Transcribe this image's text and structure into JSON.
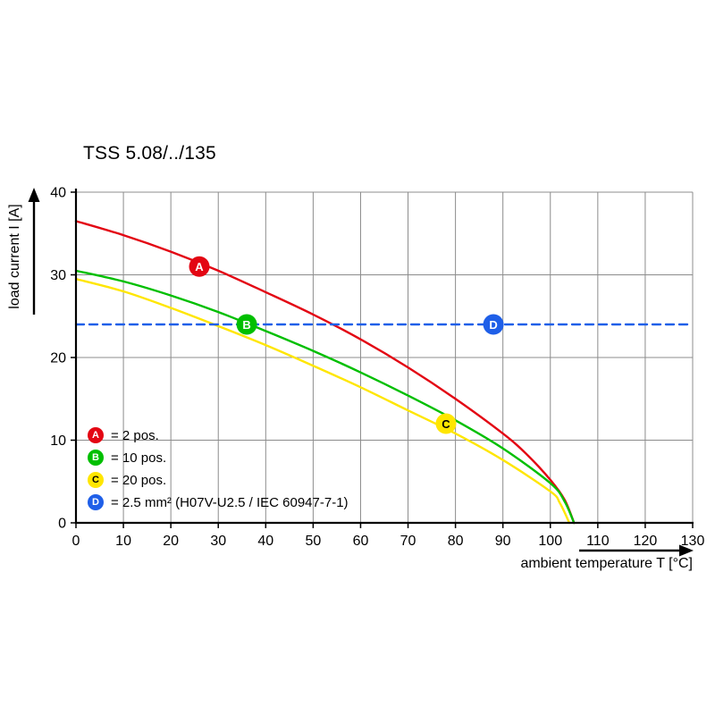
{
  "title": "TSS 5.08/../135",
  "axes": {
    "xlabel": "ambient temperature T [°C]",
    "ylabel": "load current I [A]"
  },
  "legend": {
    "items": [
      {
        "badge": "A",
        "text": "= 2 pos.",
        "color": "#e30613",
        "text_color": "#ffffff"
      },
      {
        "badge": "B",
        "text": "= 10 pos.",
        "color": "#00bf00",
        "text_color": "#ffffff"
      },
      {
        "badge": "C",
        "text": "= 20 pos.",
        "color": "#ffe600",
        "text_color": "#000000"
      },
      {
        "badge": "D",
        "text": "= 2.5 mm² (H07V-U2.5 / IEC 60947-7-1)",
        "color": "#1f5fe8",
        "text_color": "#ffffff"
      }
    ]
  },
  "chart_data": {
    "type": "line",
    "title": "TSS 5.08/../135",
    "xlabel": "ambient temperature T [°C]",
    "ylabel": "load current I [A]",
    "xlim": [
      0,
      130
    ],
    "ylim": [
      0,
      40
    ],
    "x_ticks": [
      0,
      10,
      20,
      30,
      40,
      50,
      60,
      70,
      80,
      90,
      100,
      110,
      120,
      130
    ],
    "y_ticks": [
      0,
      10,
      20,
      30,
      40
    ],
    "grid": true,
    "grid_color": "#8c8c8c",
    "axis_color": "#000000",
    "series": [
      {
        "name": "A",
        "label": "2 pos.",
        "color": "#e30613",
        "dash": false,
        "points": [
          [
            0,
            36.5
          ],
          [
            10,
            34.8
          ],
          [
            20,
            32.8
          ],
          [
            30,
            30.5
          ],
          [
            40,
            27.9
          ],
          [
            50,
            25.2
          ],
          [
            60,
            22.2
          ],
          [
            70,
            18.8
          ],
          [
            80,
            15.0
          ],
          [
            90,
            10.8
          ],
          [
            95,
            8.3
          ],
          [
            100,
            5.2
          ],
          [
            103,
            2.8
          ],
          [
            105,
            0
          ]
        ],
        "marker": {
          "x": 26,
          "y": 31,
          "letter": "A",
          "text_color": "#ffffff"
        }
      },
      {
        "name": "B",
        "label": "10 pos.",
        "color": "#00bf00",
        "dash": false,
        "points": [
          [
            0,
            30.5
          ],
          [
            10,
            29.2
          ],
          [
            20,
            27.5
          ],
          [
            30,
            25.5
          ],
          [
            40,
            23.2
          ],
          [
            50,
            20.8
          ],
          [
            60,
            18.2
          ],
          [
            70,
            15.4
          ],
          [
            80,
            12.4
          ],
          [
            90,
            9.0
          ],
          [
            100,
            4.8
          ],
          [
            103,
            2.6
          ],
          [
            105,
            0
          ]
        ],
        "marker": {
          "x": 36,
          "y": 24,
          "letter": "B",
          "text_color": "#ffffff"
        }
      },
      {
        "name": "C",
        "label": "20 pos.",
        "color": "#ffe600",
        "dash": false,
        "points": [
          [
            0,
            29.5
          ],
          [
            10,
            28.0
          ],
          [
            20,
            26.0
          ],
          [
            30,
            23.8
          ],
          [
            40,
            21.5
          ],
          [
            50,
            19.0
          ],
          [
            60,
            16.4
          ],
          [
            70,
            13.6
          ],
          [
            80,
            10.8
          ],
          [
            90,
            7.6
          ],
          [
            100,
            3.8
          ],
          [
            102,
            2.4
          ],
          [
            104,
            0
          ]
        ],
        "marker": {
          "x": 78,
          "y": 12,
          "letter": "C",
          "text_color": "#000000"
        }
      },
      {
        "name": "D",
        "label": "2.5 mm² (H07V-U2.5 / IEC 60947-7-1)",
        "color": "#1f5fe8",
        "dash": true,
        "points": [
          [
            0,
            24
          ],
          [
            130,
            24
          ]
        ],
        "marker": {
          "x": 88,
          "y": 24,
          "letter": "D",
          "text_color": "#ffffff"
        }
      }
    ]
  }
}
